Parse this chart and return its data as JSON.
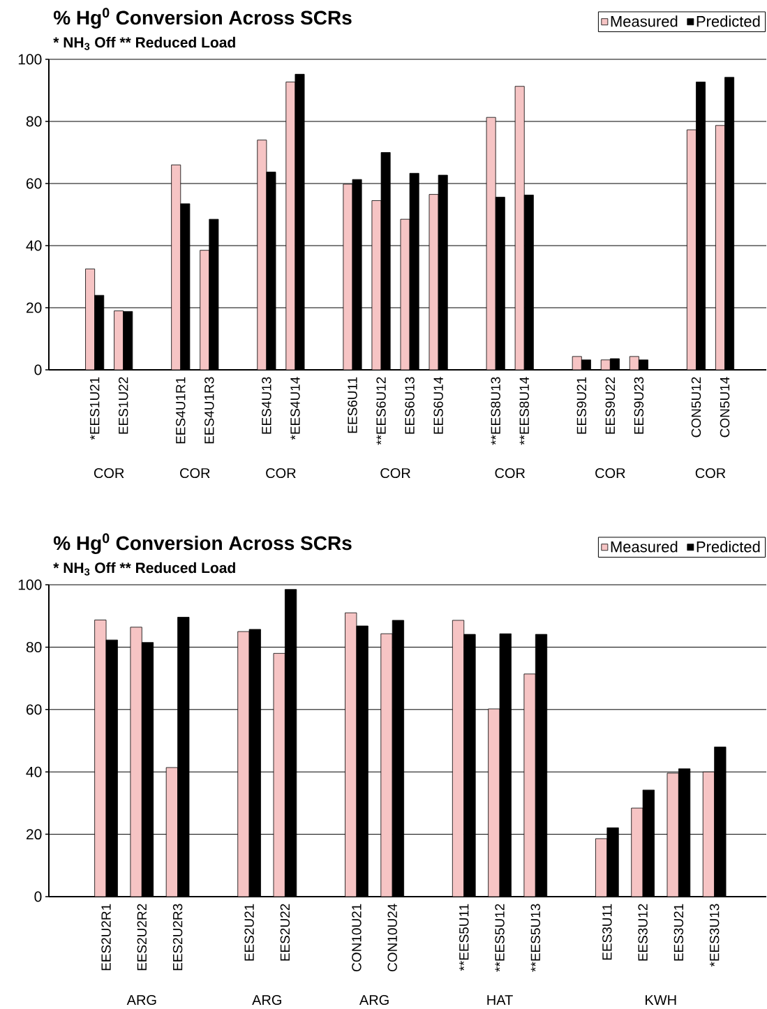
{
  "chart_data": [
    {
      "type": "bar",
      "title": "% Hg$^{0}$ Conversion Across SCRs",
      "subtitle": "* NH$_{3}$ Off      ** Reduced Load",
      "categories": [
        "*EES1U21",
        "EES1U22",
        null,
        "EES4U1R1",
        "EES4U1R3",
        null,
        "EES4U13",
        "*EES4U14",
        null,
        "EES6U11",
        "**EES6U12",
        "EES6U13",
        "EES6U14",
        null,
        "**EES8U13",
        "**EES8U14",
        null,
        "EES9U21",
        "EES9U22",
        "EES9U23",
        null,
        "CON5U12",
        "CON5U14"
      ],
      "series": [
        {
          "name": "Measured",
          "color": "#f6c4c4",
          "values": [
            32.5,
            19,
            null,
            66,
            38.5,
            null,
            74,
            92.7,
            null,
            59.8,
            54.5,
            48.5,
            56.5,
            null,
            81.3,
            91.3,
            null,
            4.3,
            3.2,
            4.3,
            null,
            77.3,
            78.7
          ]
        },
        {
          "name": "Predicted",
          "color": "#000000",
          "values": [
            24,
            18.8,
            null,
            53.5,
            48.5,
            null,
            63.7,
            95.2,
            null,
            61.3,
            70,
            63.3,
            62.7,
            null,
            55.6,
            56.3,
            null,
            3.2,
            3.6,
            3.2,
            null,
            92.7,
            94.2
          ]
        }
      ],
      "annotations": [
        "COR",
        "COR",
        "COR",
        "COR",
        "COR",
        "COR",
        "COR"
      ],
      "ylim": [
        0,
        100
      ],
      "yticks": [
        0,
        20,
        40,
        60,
        80,
        100
      ],
      "grid": "y",
      "legend": "top right"
    },
    {
      "type": "bar",
      "title": "% Hg$^{0}$ Conversion Across SCRs",
      "subtitle": "* NH$_{3}$ Off      ** Reduced Load",
      "categories": [
        "EES2U2R1",
        "EES2U2R2",
        "EES2U2R3",
        null,
        "EES2U21",
        "EES2U22",
        null,
        "CON10U21",
        "CON10U24",
        null,
        "**EES5U11",
        "**EES5U12",
        "**EES5U13",
        null,
        "EES3U11",
        "EES3U12",
        "EES3U21",
        "*EES3U13"
      ],
      "series": [
        {
          "name": "Measured",
          "color": "#f6c4c4",
          "values": [
            88.7,
            86.4,
            41.4,
            null,
            85,
            78,
            null,
            91,
            84.3,
            null,
            88.6,
            60.2,
            71.4,
            null,
            18.6,
            28.4,
            39.6,
            40
          ]
        },
        {
          "name": "Predicted",
          "color": "#000000",
          "values": [
            82.3,
            81.5,
            89.6,
            null,
            85.7,
            98.5,
            null,
            86.8,
            88.6,
            null,
            84.1,
            84.3,
            84.1,
            null,
            22.1,
            34.2,
            41,
            48
          ]
        }
      ],
      "annotations": [
        "ARG",
        "ARG",
        "ARG",
        "HAT",
        "KWH"
      ],
      "ylim": [
        0,
        100
      ],
      "yticks": [
        0,
        20,
        40,
        60,
        80,
        100
      ],
      "grid": "y",
      "legend": "top right"
    }
  ]
}
